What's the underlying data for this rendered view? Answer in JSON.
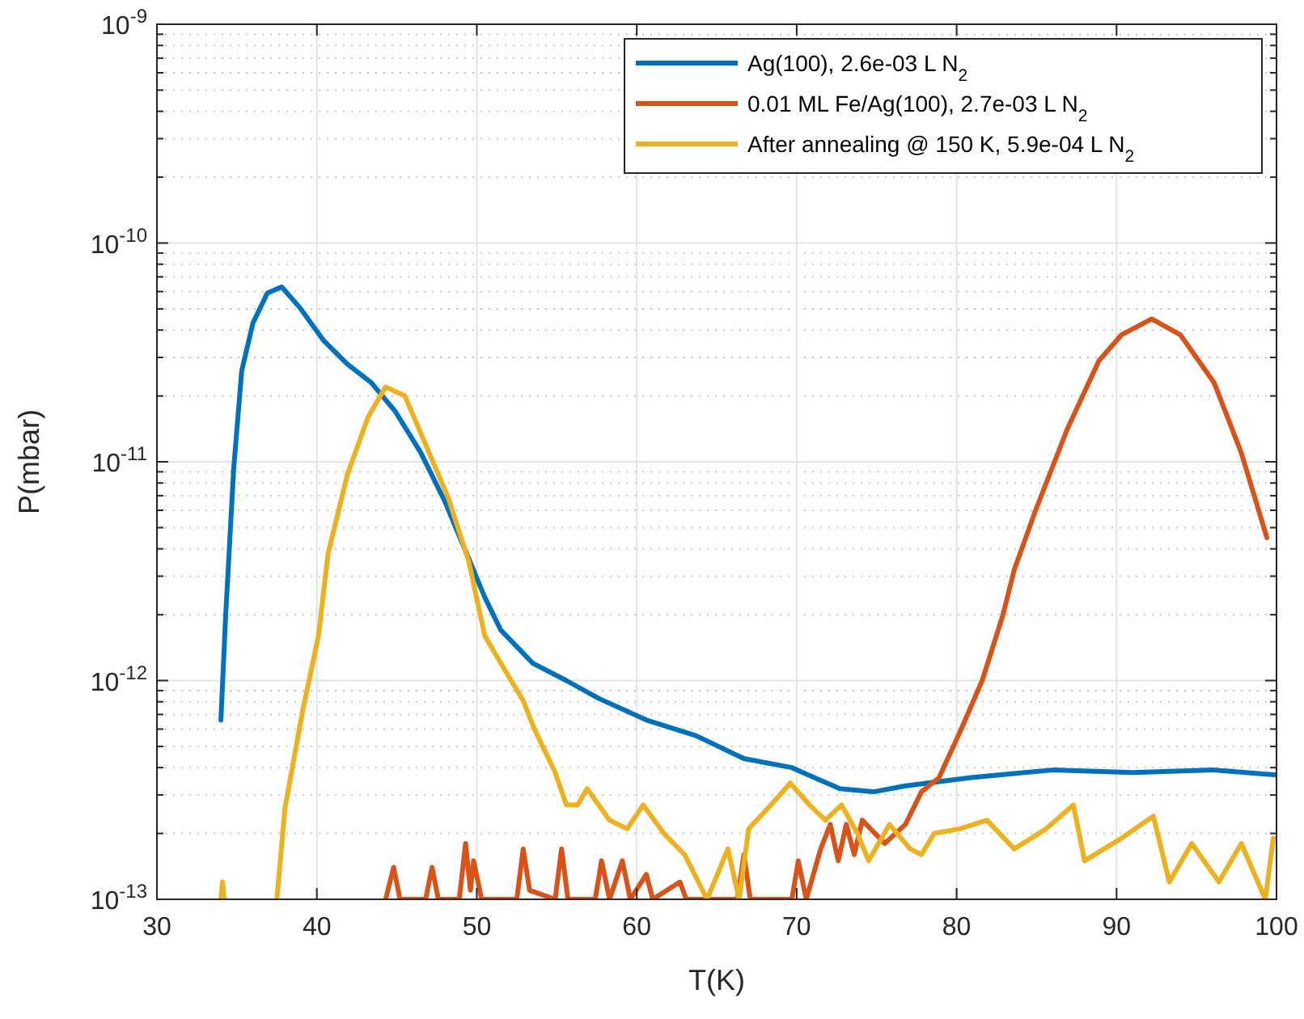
{
  "chart_data": {
    "type": "line",
    "xlabel": "T(K)",
    "ylabel": "P(mbar)",
    "log": "y",
    "grid": true,
    "legend": "top right",
    "line_style": "solid",
    "xlim": [
      30,
      100
    ],
    "xticks": [
      30,
      40,
      50,
      60,
      70,
      80,
      90,
      100
    ],
    "ylim": [
      1e-13,
      1e-09
    ],
    "yticks": [
      {
        "value": 1e-13,
        "label": "10$^{-13}$"
      },
      {
        "value": 1e-12,
        "label": "10$^{-12}$"
      },
      {
        "value": 1e-11,
        "label": "10$^{-11}$"
      },
      {
        "value": 1e-10,
        "label": "10$^{-10}$"
      },
      {
        "value": 1e-09,
        "label": "10$^{-9}$"
      }
    ],
    "series": [
      {
        "name": "Ag(100), 2.6e-03 L N$_{2}$",
        "color": "#0072bd",
        "x": [
          34.0,
          34.3,
          34.8,
          35.3,
          36.0,
          36.9,
          37.8,
          38.9,
          40.4,
          41.9,
          43.4,
          44.9,
          46.5,
          48.0,
          49.5,
          50.5,
          51.5,
          53.5,
          55.6,
          57.6,
          60.6,
          63.7,
          66.7,
          69.7,
          72.7,
          74.8,
          76.8,
          80.9,
          86.0,
          91.0,
          96.1,
          100
        ],
        "values": [
          6.6e-13,
          2e-12,
          9.3e-12,
          2.6e-11,
          4.3e-11,
          5.9e-11,
          6.3e-11,
          5.1e-11,
          3.6e-11,
          2.8e-11,
          2.3e-11,
          1.7e-11,
          1.1e-11,
          6.6e-12,
          3.6e-12,
          2.4e-12,
          1.7e-12,
          1.2e-12,
          1e-12,
          8.3e-13,
          6.6e-13,
          5.6e-13,
          4.4e-13,
          4e-13,
          3.2e-13,
          3.1e-13,
          3.3e-13,
          3.6e-13,
          3.9e-13,
          3.8e-13,
          3.9e-13,
          3.7e-13
        ]
      },
      {
        "name": "0.01 ML Fe/Ag(100), 2.7e-03 L N$_{2}$",
        "color": "#d95319",
        "x": [
          44.3,
          44.8,
          45.2,
          46.8,
          47.2,
          47.6,
          48.9,
          49.3,
          49.6,
          49.8,
          50.3,
          52.5,
          52.9,
          53.3,
          54.9,
          55.3,
          55.7,
          57.4,
          57.8,
          58.3,
          59.1,
          59.6,
          60.6,
          61.0,
          62.7,
          63.1,
          66.3,
          66.7,
          67.1,
          69.7,
          70.1,
          70.6,
          71.5,
          72.1,
          72.6,
          73.1,
          73.6,
          74.1,
          75.5,
          76.8,
          77.8,
          78.9,
          80.2,
          81.6,
          82.9,
          83.6,
          84.9,
          86.9,
          88.9,
          90.3,
          92.2,
          94.0,
          96.1,
          97.8,
          99.4
        ],
        "values": [
          1e-13,
          1.4e-13,
          1e-13,
          1e-13,
          1.4e-13,
          1e-13,
          1e-13,
          1.8e-13,
          1.1e-13,
          1.5e-13,
          1e-13,
          1e-13,
          1.7e-13,
          1.1e-13,
          1e-13,
          1.7e-13,
          1e-13,
          1e-13,
          1.5e-13,
          1e-13,
          1.5e-13,
          1e-13,
          1.3e-13,
          1e-13,
          1.2e-13,
          1e-13,
          1e-13,
          1.6e-13,
          1e-13,
          1e-13,
          1.5e-13,
          1e-13,
          1.7e-13,
          2.2e-13,
          1.5e-13,
          2.2e-13,
          1.6e-13,
          2.3e-13,
          1.8e-13,
          2.2e-13,
          3.1e-13,
          3.6e-13,
          5.8e-13,
          1e-12,
          2e-12,
          3.2e-12,
          5.9e-12,
          1.4e-11,
          2.9e-11,
          3.8e-11,
          4.5e-11,
          3.8e-11,
          2.3e-11,
          1.1e-11,
          4.5e-12
        ]
      },
      {
        "name": "After annealing @ 150 K, 5.9e-04 L N$_{2}$",
        "color": "#edb120",
        "x": [
          34.0,
          34.1,
          34.2,
          36.0,
          37.5,
          38.0,
          39.1,
          40.1,
          40.7,
          41.9,
          43.2,
          44.3,
          45.5,
          46.8,
          48.2,
          49.5,
          50.5,
          51.5,
          52.9,
          53.6,
          54.9,
          55.6,
          56.3,
          56.9,
          58.3,
          59.4,
          60.4,
          61.7,
          63.0,
          64.4,
          65.7,
          66.4,
          67.0,
          68.4,
          69.6,
          70.8,
          71.8,
          72.8,
          73.8,
          74.5,
          75.8,
          77.1,
          77.8,
          78.6,
          80.2,
          81.9,
          83.6,
          85.6,
          87.3,
          88.0,
          90.3,
          92.3,
          93.3,
          94.7,
          96.4,
          97.8,
          99.3,
          99.8
        ],
        "values": [
          1e-13,
          1.2e-13,
          1e-13,
          null,
          1e-13,
          2.6e-13,
          7.2e-13,
          1.6e-12,
          3.8e-12,
          8.7e-12,
          1.6e-11,
          2.2e-11,
          2e-11,
          1.2e-11,
          6.9e-12,
          3.5e-12,
          1.6e-12,
          1.2e-12,
          8.1e-13,
          6e-13,
          3.8e-13,
          2.7e-13,
          2.7e-13,
          3.2e-13,
          2.3e-13,
          2.1e-13,
          2.7e-13,
          2e-13,
          1.6e-13,
          1e-13,
          1.7e-13,
          1e-13,
          2.1e-13,
          2.7e-13,
          3.4e-13,
          2.7e-13,
          2.3e-13,
          2.7e-13,
          2e-13,
          1.5e-13,
          2.2e-13,
          1.7e-13,
          1.6e-13,
          2e-13,
          2.1e-13,
          2.3e-13,
          1.7e-13,
          2.1e-13,
          2.7e-13,
          1.5e-13,
          1.9e-13,
          2.4e-13,
          1.2e-13,
          1.8e-13,
          1.2e-13,
          1.8e-13,
          1e-13,
          1.9e-13
        ]
      }
    ]
  }
}
